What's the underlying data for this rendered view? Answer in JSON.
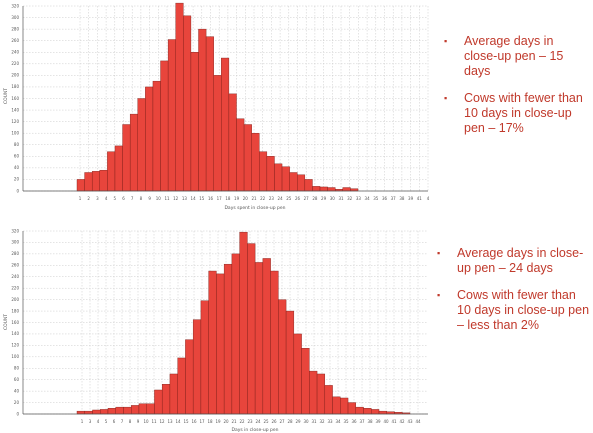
{
  "chart_data": [
    {
      "type": "bar",
      "title": "",
      "xlabel": "Days spent in close-up pen",
      "ylabel": "COUNT",
      "ylim": [
        0,
        320
      ],
      "yticks": [
        "0",
        "20",
        "40",
        "60",
        "80",
        "100",
        "120",
        "140",
        "160",
        "180",
        "200",
        "220",
        "240",
        "260",
        "280",
        "300",
        "320"
      ],
      "grid": true,
      "bar_color": "#e8453c",
      "xtick_labels": [
        "1",
        "2",
        "3",
        "4",
        "5",
        "6",
        "7",
        "8",
        "9",
        "10",
        "11",
        "12",
        "13",
        "14",
        "15",
        "16",
        "17",
        "18",
        "19",
        "20",
        "21",
        "22",
        "23",
        "24",
        "25",
        "26",
        "27",
        "28",
        "29",
        "30",
        "31",
        "32",
        "33",
        "34",
        "35",
        "36",
        "37",
        "38",
        "39",
        "41",
        "4"
      ],
      "x": [
        1,
        2,
        3,
        4,
        5,
        6,
        7,
        8,
        9,
        10,
        11,
        12,
        13,
        14,
        15,
        16,
        17,
        18,
        19,
        20,
        21,
        22,
        23,
        24,
        25,
        26,
        27,
        28,
        29,
        30,
        31,
        32,
        33,
        34,
        35,
        36,
        37
      ],
      "values": [
        20,
        32,
        34,
        36,
        68,
        78,
        115,
        133,
        160,
        180,
        190,
        225,
        262,
        325,
        303,
        240,
        280,
        267,
        200,
        230,
        168,
        125,
        115,
        100,
        68,
        60,
        47,
        42,
        32,
        28,
        20,
        8,
        7,
        6,
        3,
        6,
        4
      ]
    },
    {
      "type": "bar",
      "title": "",
      "xlabel": "Days in close-up pen",
      "ylabel": "COUNT",
      "ylim": [
        0,
        320
      ],
      "yticks": [
        "0",
        "20",
        "40",
        "60",
        "80",
        "100",
        "120",
        "140",
        "160",
        "180",
        "200",
        "220",
        "240",
        "260",
        "280",
        "300",
        "320"
      ],
      "grid": true,
      "bar_color": "#e8453c",
      "xtick_labels": [
        "1",
        "3",
        "4",
        "5",
        "6",
        "7",
        "8",
        "9",
        "10",
        "11",
        "12",
        "13",
        "14",
        "15",
        "16",
        "17",
        "18",
        "19",
        "20",
        "21",
        "22",
        "23",
        "24",
        "25",
        "26",
        "27",
        "28",
        "29",
        "30",
        "31",
        "32",
        "33",
        "34",
        "35",
        "36",
        "37",
        "38",
        "39",
        "40",
        "41",
        "42",
        "43",
        "44"
      ],
      "x": [
        1,
        3,
        4,
        5,
        6,
        7,
        8,
        9,
        10,
        11,
        12,
        13,
        14,
        15,
        16,
        17,
        18,
        19,
        20,
        21,
        22,
        23,
        24,
        25,
        26,
        27,
        28,
        29,
        30,
        31,
        32,
        33,
        34,
        35,
        36,
        37,
        38,
        39,
        40,
        41,
        42,
        43,
        44
      ],
      "values": [
        5,
        5,
        7,
        8,
        10,
        12,
        12,
        15,
        18,
        18,
        42,
        52,
        70,
        98,
        130,
        165,
        198,
        250,
        245,
        262,
        280,
        318,
        298,
        265,
        272,
        250,
        200,
        180,
        140,
        115,
        75,
        70,
        50,
        30,
        28,
        20,
        12,
        10,
        8,
        5,
        4,
        3,
        2
      ]
    }
  ],
  "notes": [
    {
      "items": [
        "Average days in close-up pen – 15 days",
        "Cows with fewer than 10 days in close-up pen – 17%"
      ]
    },
    {
      "items": [
        "Average days in close-up pen – 24 days",
        "Cows with fewer than 10 days in close-up pen – less than 2%"
      ]
    }
  ],
  "bullet_symbol": "▪"
}
